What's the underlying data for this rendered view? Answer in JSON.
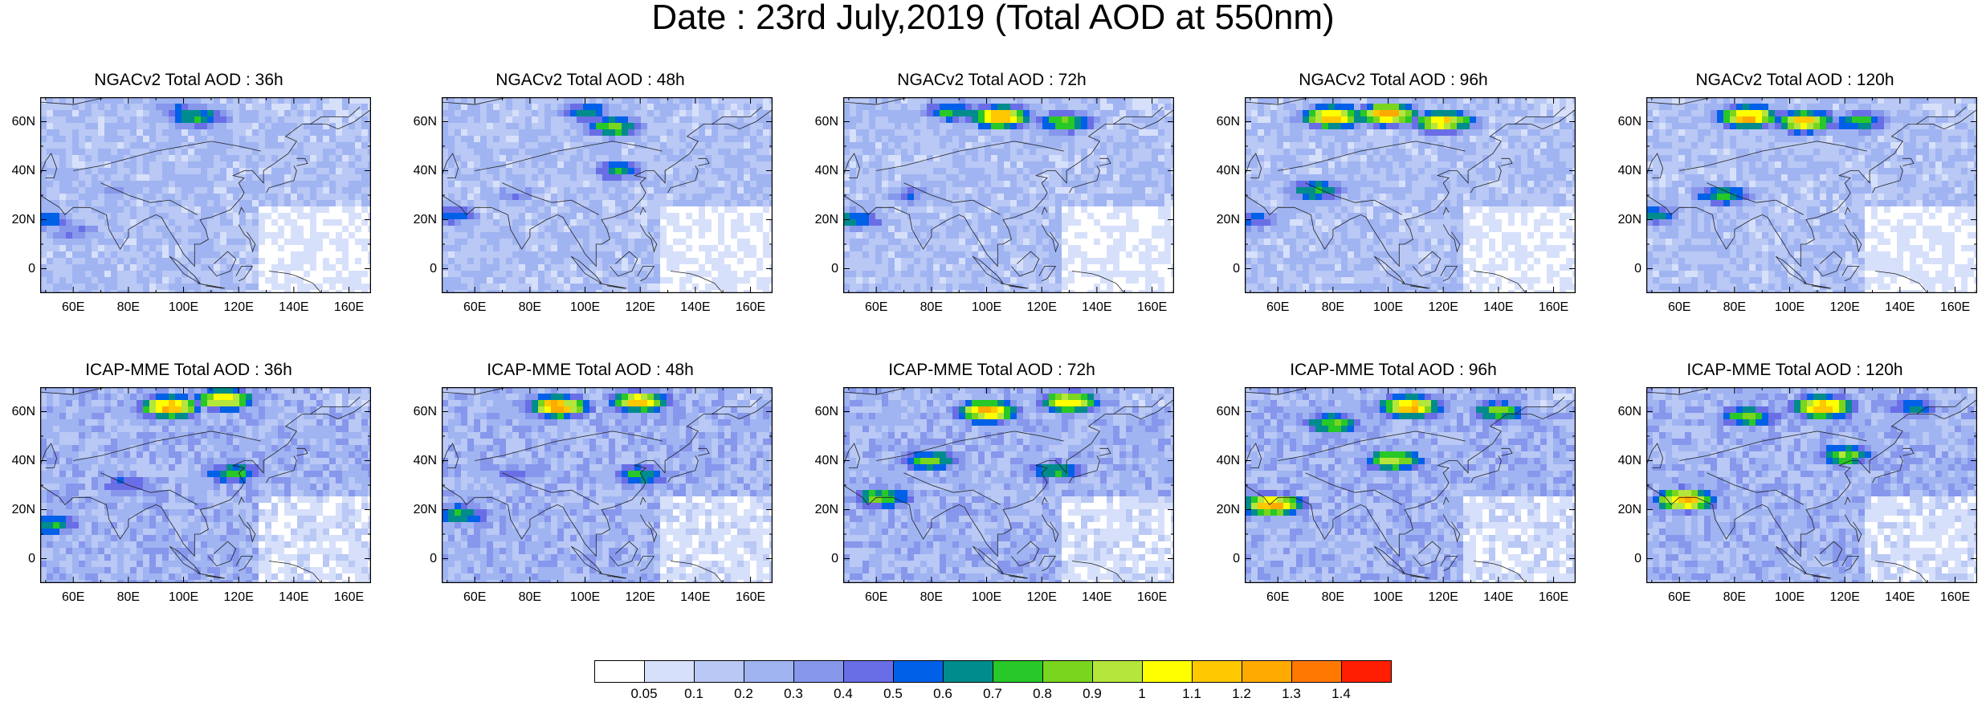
{
  "title": "Date : 23rd July,2019 (Total AOD at 550nm)",
  "lon_ticks": [
    "60E",
    "80E",
    "100E",
    "120E",
    "140E",
    "160E"
  ],
  "lat_ticks": [
    "60N",
    "40N",
    "20N",
    "0"
  ],
  "map_extent": {
    "lon": [
      48,
      168
    ],
    "lat": [
      -10,
      70
    ]
  },
  "panels": [
    {
      "row": 0,
      "title": "NGACv2 Total AOD : 36h",
      "features": [
        {
          "lon": 105,
          "lat": 62,
          "level": 8
        },
        {
          "lon": 98,
          "lat": 66,
          "level": 5
        },
        {
          "lon": 60,
          "lat": 15,
          "level": 5
        },
        {
          "lon": 75,
          "lat": 32,
          "level": 4
        },
        {
          "lon": 48,
          "lat": 20,
          "level": 7
        }
      ]
    },
    {
      "row": 0,
      "title": "NGACv2 Total AOD : 48h",
      "features": [
        {
          "lon": 110,
          "lat": 58,
          "level": 9
        },
        {
          "lon": 100,
          "lat": 64,
          "level": 7
        },
        {
          "lon": 52,
          "lat": 22,
          "level": 6
        },
        {
          "lon": 112,
          "lat": 40,
          "level": 7
        },
        {
          "lon": 75,
          "lat": 30,
          "level": 4
        }
      ]
    },
    {
      "row": 0,
      "title": "NGACv2 Total AOD : 72h",
      "features": [
        {
          "lon": 105,
          "lat": 62,
          "level": 13
        },
        {
          "lon": 88,
          "lat": 64,
          "level": 8
        },
        {
          "lon": 128,
          "lat": 60,
          "level": 9
        },
        {
          "lon": 52,
          "lat": 20,
          "level": 7
        },
        {
          "lon": 72,
          "lat": 30,
          "level": 5
        }
      ]
    },
    {
      "row": 0,
      "title": "NGACv2 Total AOD : 96h",
      "features": [
        {
          "lon": 80,
          "lat": 62,
          "level": 13
        },
        {
          "lon": 100,
          "lat": 63,
          "level": 13
        },
        {
          "lon": 120,
          "lat": 60,
          "level": 12
        },
        {
          "lon": 74,
          "lat": 32,
          "level": 8
        },
        {
          "lon": 52,
          "lat": 20,
          "level": 6
        }
      ]
    },
    {
      "row": 0,
      "title": "NGACv2 Total AOD : 120h",
      "features": [
        {
          "lon": 85,
          "lat": 62,
          "level": 13
        },
        {
          "lon": 105,
          "lat": 60,
          "level": 12
        },
        {
          "lon": 125,
          "lat": 60,
          "level": 8
        },
        {
          "lon": 76,
          "lat": 30,
          "level": 8
        },
        {
          "lon": 50,
          "lat": 22,
          "level": 7
        }
      ]
    },
    {
      "row": 1,
      "title": "ICAP-MME Total AOD : 36h",
      "features": [
        {
          "lon": 95,
          "lat": 62,
          "level": 13
        },
        {
          "lon": 115,
          "lat": 65,
          "level": 12
        },
        {
          "lon": 52,
          "lat": 14,
          "level": 8
        },
        {
          "lon": 118,
          "lat": 35,
          "level": 8
        },
        {
          "lon": 80,
          "lat": 30,
          "level": 6
        }
      ]
    },
    {
      "row": 1,
      "title": "ICAP-MME Total AOD : 48h",
      "features": [
        {
          "lon": 90,
          "lat": 62,
          "level": 13
        },
        {
          "lon": 120,
          "lat": 64,
          "level": 12
        },
        {
          "lon": 55,
          "lat": 18,
          "level": 8
        },
        {
          "lon": 120,
          "lat": 34,
          "level": 8
        },
        {
          "lon": 75,
          "lat": 34,
          "level": 5
        }
      ]
    },
    {
      "row": 1,
      "title": "ICAP-MME Total AOD : 72h",
      "features": [
        {
          "lon": 100,
          "lat": 60,
          "level": 13
        },
        {
          "lon": 130,
          "lat": 64,
          "level": 12
        },
        {
          "lon": 62,
          "lat": 25,
          "level": 9
        },
        {
          "lon": 80,
          "lat": 40,
          "level": 9
        },
        {
          "lon": 125,
          "lat": 36,
          "level": 8
        }
      ]
    },
    {
      "row": 1,
      "title": "ICAP-MME Total AOD : 96h",
      "features": [
        {
          "lon": 108,
          "lat": 62,
          "level": 13
        },
        {
          "lon": 80,
          "lat": 55,
          "level": 9
        },
        {
          "lon": 58,
          "lat": 22,
          "level": 13
        },
        {
          "lon": 102,
          "lat": 40,
          "level": 10
        },
        {
          "lon": 140,
          "lat": 60,
          "level": 9
        }
      ]
    },
    {
      "row": 1,
      "title": "ICAP-MME Total AOD : 120h",
      "features": [
        {
          "lon": 112,
          "lat": 62,
          "level": 13
        },
        {
          "lon": 85,
          "lat": 58,
          "level": 9
        },
        {
          "lon": 62,
          "lat": 24,
          "level": 13
        },
        {
          "lon": 120,
          "lat": 42,
          "level": 9
        },
        {
          "lon": 145,
          "lat": 62,
          "level": 7
        }
      ]
    }
  ],
  "colorbar": {
    "colors": [
      "#ffffff",
      "#d7e0fa",
      "#b9c8f4",
      "#a0b4f2",
      "#8797ec",
      "#6a6ee6",
      "#0060e8",
      "#008c8c",
      "#27c827",
      "#7ad51e",
      "#b5e63c",
      "#ffff00",
      "#ffc800",
      "#ffaa00",
      "#ff7800",
      "#ff1e00"
    ],
    "labels": [
      "0.05",
      "0.1",
      "0.2",
      "0.3",
      "0.4",
      "0.5",
      "0.6",
      "0.7",
      "0.8",
      "0.9",
      "1",
      "1.1",
      "1.2",
      "1.3",
      "1.4"
    ]
  }
}
